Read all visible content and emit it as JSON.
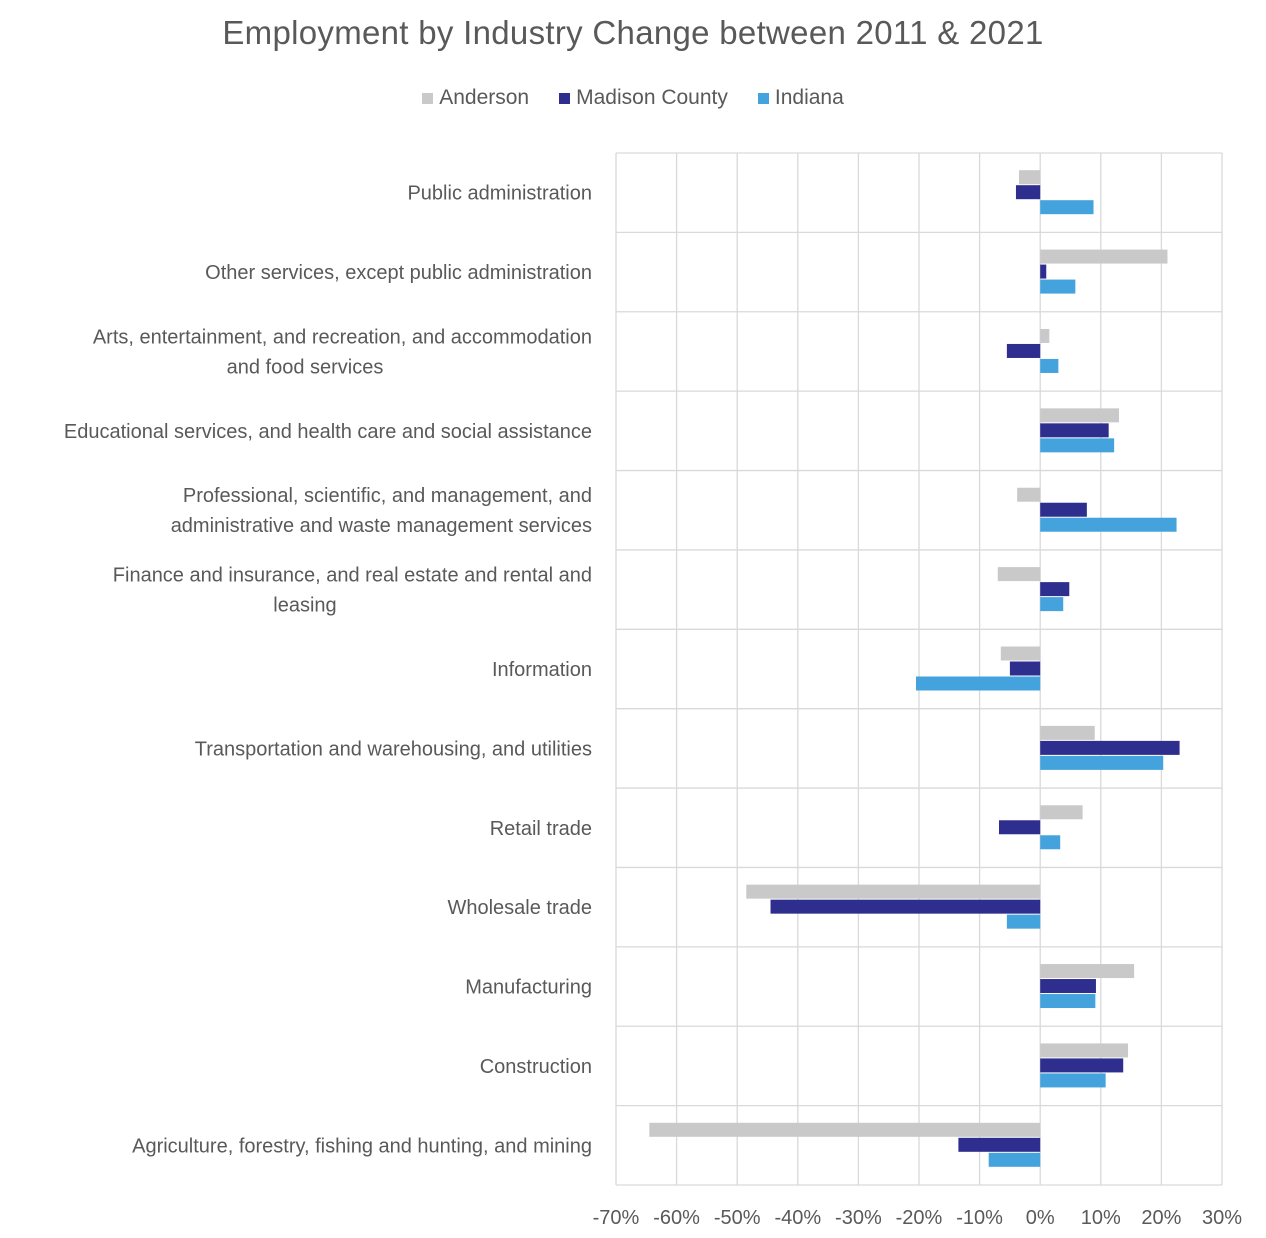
{
  "chart_data": {
    "type": "bar",
    "orientation": "horizontal",
    "title": "Employment by Industry Change between 2011 & 2021",
    "xlabel": "",
    "ylabel": "",
    "xlim": [
      -70,
      30
    ],
    "x_ticks": [
      -70,
      -60,
      -50,
      -40,
      -30,
      -20,
      -10,
      0,
      10,
      20,
      30
    ],
    "x_tick_labels": [
      "-70%",
      "-60%",
      "-50%",
      "-40%",
      "-30%",
      "-20%",
      "-10%",
      "0%",
      "10%",
      "20%",
      "30%"
    ],
    "grid": true,
    "legend_position": "top",
    "categories": [
      [
        "Public administration"
      ],
      [
        "Other services, except public administration"
      ],
      [
        "Arts, entertainment, and recreation, and accommodation",
        "and food services"
      ],
      [
        "Educational services, and health care and social assistance"
      ],
      [
        "Professional, scientific, and management, and",
        "administrative and waste management services"
      ],
      [
        "Finance and insurance, and real estate and rental and",
        "leasing"
      ],
      [
        "Information"
      ],
      [
        "Transportation and warehousing, and utilities"
      ],
      [
        "Retail trade"
      ],
      [
        "Wholesale trade"
      ],
      [
        "Manufacturing"
      ],
      [
        "Construction"
      ],
      [
        "Agriculture, forestry, fishing and hunting, and mining"
      ]
    ],
    "series": [
      {
        "name": "Anderson",
        "color": "#c9c9c9",
        "values": [
          -3.5,
          21,
          1.5,
          13,
          -3.8,
          -7,
          -6.5,
          9,
          7,
          -48.5,
          15.5,
          14.5,
          -64.5
        ]
      },
      {
        "name": "Madison County",
        "color": "#2e2e8e",
        "values": [
          -4,
          1,
          -5.5,
          11.3,
          7.7,
          4.8,
          -5,
          23,
          -6.8,
          -44.5,
          9.2,
          13.7,
          -13.5
        ]
      },
      {
        "name": "Indiana",
        "color": "#44a3dd",
        "values": [
          8.8,
          5.8,
          3,
          12.2,
          22.5,
          3.8,
          -20.5,
          20.3,
          3.3,
          -5.5,
          9.1,
          10.8,
          -8.5
        ]
      }
    ]
  }
}
